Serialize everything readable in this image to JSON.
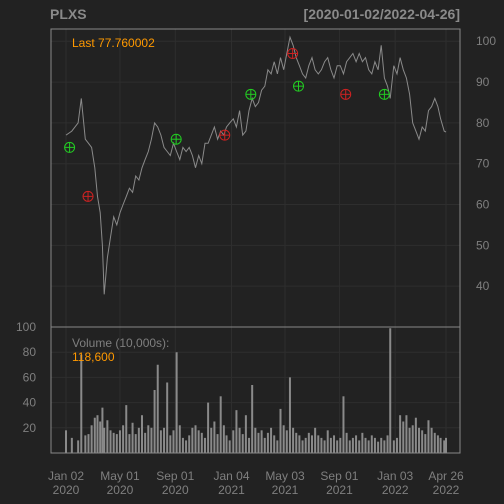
{
  "header": {
    "symbol": "PLXS",
    "range": "[2020-01-02/2022-04-26]"
  },
  "colors": {
    "background": "#222222",
    "panel_border": "#888888",
    "grid": "#2e2e2e",
    "price_line": "#8a8a8a",
    "volume_bar": "#8a8a8a",
    "text_muted": "#7f7f7f",
    "text_header": "#8a8a8a",
    "accent_orange": "#ff9900",
    "buy_marker": "#22cc22",
    "sell_marker": "#cc2222"
  },
  "chart_data": [
    {
      "type": "line",
      "name": "price",
      "last_label": "Last 77.760002",
      "ylim": [
        30,
        103
      ],
      "y_ticks": [
        "40",
        "50",
        "60",
        "70",
        "80",
        "90",
        "100"
      ],
      "x_ticks": [
        {
          "date": "2020-01-02",
          "line1": "Jan 02",
          "line2": "2020"
        },
        {
          "date": "2020-05-01",
          "line1": "May 01",
          "line2": "2020"
        },
        {
          "date": "2020-09-01",
          "line1": "Sep 01",
          "line2": "2020"
        },
        {
          "date": "2021-01-04",
          "line1": "Jan 04",
          "line2": "2021"
        },
        {
          "date": "2021-05-03",
          "line1": "May 03",
          "line2": "2021"
        },
        {
          "date": "2021-09-01",
          "line1": "Sep 01",
          "line2": "2021"
        },
        {
          "date": "2022-01-03",
          "line1": "Jan 03",
          "line2": "2022"
        },
        {
          "date": "2022-04-26",
          "line1": "Apr 26",
          "line2": "2022"
        }
      ],
      "x": [
        "2020-01-02",
        "2020-01-15",
        "2020-01-29",
        "2020-02-05",
        "2020-02-14",
        "2020-02-21",
        "2020-02-28",
        "2020-03-06",
        "2020-03-12",
        "2020-03-18",
        "2020-03-23",
        "2020-03-27",
        "2020-04-03",
        "2020-04-10",
        "2020-04-17",
        "2020-04-24",
        "2020-05-01",
        "2020-05-08",
        "2020-05-15",
        "2020-05-22",
        "2020-05-29",
        "2020-06-05",
        "2020-06-12",
        "2020-06-19",
        "2020-06-26",
        "2020-07-03",
        "2020-07-10",
        "2020-07-17",
        "2020-07-24",
        "2020-07-31",
        "2020-08-07",
        "2020-08-14",
        "2020-08-21",
        "2020-08-28",
        "2020-09-04",
        "2020-09-11",
        "2020-09-18",
        "2020-09-25",
        "2020-10-02",
        "2020-10-09",
        "2020-10-16",
        "2020-10-23",
        "2020-10-30",
        "2020-11-06",
        "2020-11-13",
        "2020-11-20",
        "2020-11-27",
        "2020-12-04",
        "2020-12-11",
        "2020-12-18",
        "2020-12-24",
        "2020-12-31",
        "2021-01-08",
        "2021-01-15",
        "2021-01-22",
        "2021-01-29",
        "2021-02-05",
        "2021-02-12",
        "2021-02-19",
        "2021-02-26",
        "2021-03-05",
        "2021-03-12",
        "2021-03-19",
        "2021-03-26",
        "2021-04-02",
        "2021-04-09",
        "2021-04-16",
        "2021-04-23",
        "2021-04-30",
        "2021-05-07",
        "2021-05-14",
        "2021-05-21",
        "2021-05-28",
        "2021-06-04",
        "2021-06-11",
        "2021-06-18",
        "2021-06-25",
        "2021-07-02",
        "2021-07-09",
        "2021-07-16",
        "2021-07-23",
        "2021-07-30",
        "2021-08-06",
        "2021-08-13",
        "2021-08-20",
        "2021-08-27",
        "2021-09-03",
        "2021-09-10",
        "2021-09-17",
        "2021-09-24",
        "2021-10-01",
        "2021-10-08",
        "2021-10-15",
        "2021-10-22",
        "2021-10-29",
        "2021-11-05",
        "2021-11-12",
        "2021-11-19",
        "2021-11-26",
        "2021-12-03",
        "2021-12-10",
        "2021-12-17",
        "2021-12-23",
        "2021-12-31",
        "2022-01-07",
        "2022-01-14",
        "2022-01-21",
        "2022-01-28",
        "2022-02-04",
        "2022-02-11",
        "2022-02-18",
        "2022-02-25",
        "2022-03-04",
        "2022-03-11",
        "2022-03-18",
        "2022-03-25",
        "2022-04-01",
        "2022-04-08",
        "2022-04-14",
        "2022-04-22",
        "2022-04-26"
      ],
      "values": [
        77,
        78,
        80,
        86,
        76,
        75,
        74,
        69,
        62,
        58,
        50,
        38,
        47,
        52,
        57,
        55,
        58,
        60,
        62,
        64,
        63,
        67,
        66,
        69,
        71,
        73,
        76,
        80,
        79,
        77,
        74,
        73,
        72,
        75,
        73,
        71,
        74,
        73,
        74,
        72,
        69,
        72,
        70,
        75,
        75,
        77,
        79,
        76,
        78,
        77,
        79,
        80,
        81,
        79,
        83,
        77,
        78,
        83,
        86,
        84,
        85,
        88,
        89,
        93,
        92,
        95,
        92,
        96,
        93,
        97,
        101,
        99,
        96,
        94,
        92,
        91,
        94,
        96,
        93,
        92,
        93,
        95,
        96,
        93,
        91,
        94,
        94,
        92,
        95,
        96,
        97,
        95,
        97,
        95,
        96,
        93,
        92,
        95,
        93,
        99,
        91,
        89,
        86,
        94,
        92,
        96,
        93,
        91,
        87,
        80,
        78,
        76,
        79,
        78,
        83,
        84,
        86,
        84,
        81,
        78,
        77.76
      ],
      "markers": [
        {
          "date": "2020-01-10",
          "value": 74,
          "kind": "buy"
        },
        {
          "date": "2020-02-20",
          "value": 62,
          "kind": "sell"
        },
        {
          "date": "2020-09-03",
          "value": 76,
          "kind": "buy"
        },
        {
          "date": "2020-12-20",
          "value": 77,
          "kind": "sell"
        },
        {
          "date": "2021-02-16",
          "value": 87,
          "kind": "buy"
        },
        {
          "date": "2021-05-20",
          "value": 97,
          "kind": "sell"
        },
        {
          "date": "2021-06-02",
          "value": 89,
          "kind": "buy"
        },
        {
          "date": "2021-09-15",
          "value": 87,
          "kind": "sell"
        },
        {
          "date": "2021-12-10",
          "value": 87,
          "kind": "buy"
        }
      ]
    },
    {
      "type": "bar",
      "name": "volume",
      "title": "Volume (10,000s):",
      "last_value": "118,600",
      "ylim": [
        0,
        100
      ],
      "y_ticks": [
        "20",
        "40",
        "60",
        "80",
        "100"
      ],
      "x": [
        "2020-01-02",
        "2020-01-15",
        "2020-01-29",
        "2020-02-05",
        "2020-02-14",
        "2020-02-21",
        "2020-02-28",
        "2020-03-06",
        "2020-03-12",
        "2020-03-18",
        "2020-03-23",
        "2020-03-27",
        "2020-04-03",
        "2020-04-10",
        "2020-04-17",
        "2020-04-24",
        "2020-05-01",
        "2020-05-08",
        "2020-05-15",
        "2020-05-22",
        "2020-05-29",
        "2020-06-05",
        "2020-06-12",
        "2020-06-19",
        "2020-06-26",
        "2020-07-03",
        "2020-07-10",
        "2020-07-17",
        "2020-07-24",
        "2020-07-31",
        "2020-08-07",
        "2020-08-14",
        "2020-08-21",
        "2020-08-28",
        "2020-09-04",
        "2020-09-11",
        "2020-09-18",
        "2020-09-25",
        "2020-10-02",
        "2020-10-09",
        "2020-10-16",
        "2020-10-23",
        "2020-10-30",
        "2020-11-06",
        "2020-11-13",
        "2020-11-20",
        "2020-11-27",
        "2020-12-04",
        "2020-12-11",
        "2020-12-18",
        "2020-12-24",
        "2020-12-31",
        "2021-01-08",
        "2021-01-15",
        "2021-01-22",
        "2021-01-29",
        "2021-02-05",
        "2021-02-12",
        "2021-02-19",
        "2021-02-26",
        "2021-03-05",
        "2021-03-12",
        "2021-03-19",
        "2021-03-26",
        "2021-04-02",
        "2021-04-09",
        "2021-04-16",
        "2021-04-23",
        "2021-04-30",
        "2021-05-07",
        "2021-05-14",
        "2021-05-21",
        "2021-05-28",
        "2021-06-04",
        "2021-06-11",
        "2021-06-18",
        "2021-06-25",
        "2021-07-02",
        "2021-07-09",
        "2021-07-16",
        "2021-07-23",
        "2021-07-30",
        "2021-08-06",
        "2021-08-13",
        "2021-08-20",
        "2021-08-27",
        "2021-09-03",
        "2021-09-10",
        "2021-09-17",
        "2021-09-24",
        "2021-10-01",
        "2021-10-08",
        "2021-10-15",
        "2021-10-22",
        "2021-10-29",
        "2021-11-05",
        "2021-11-12",
        "2021-11-19",
        "2021-11-26",
        "2021-12-03",
        "2021-12-10",
        "2021-12-17",
        "2021-12-23",
        "2021-12-31",
        "2022-01-07",
        "2022-01-14",
        "2022-01-21",
        "2022-01-28",
        "2022-02-04",
        "2022-02-11",
        "2022-02-18",
        "2022-02-25",
        "2022-03-04",
        "2022-03-11",
        "2022-03-18",
        "2022-03-25",
        "2022-04-01",
        "2022-04-08",
        "2022-04-14",
        "2022-04-22",
        "2022-04-26"
      ],
      "values": [
        18,
        12,
        10,
        78,
        14,
        15,
        22,
        28,
        30,
        25,
        36,
        20,
        26,
        18,
        16,
        15,
        18,
        22,
        38,
        15,
        24,
        15,
        20,
        30,
        16,
        22,
        20,
        50,
        70,
        18,
        20,
        56,
        14,
        18,
        80,
        22,
        12,
        10,
        14,
        20,
        22,
        18,
        16,
        12,
        40,
        20,
        25,
        15,
        45,
        22,
        14,
        10,
        18,
        34,
        20,
        15,
        30,
        12,
        54,
        20,
        16,
        18,
        12,
        16,
        20,
        14,
        10,
        35,
        22,
        18,
        60,
        20,
        16,
        14,
        10,
        12,
        16,
        14,
        20,
        14,
        12,
        10,
        18,
        12,
        14,
        10,
        12,
        45,
        16,
        10,
        12,
        14,
        10,
        16,
        12,
        10,
        14,
        12,
        9,
        12,
        10,
        14,
        99,
        10,
        12,
        30,
        25,
        30,
        20,
        22,
        28,
        20,
        18,
        15,
        26,
        20,
        16,
        14,
        12,
        10,
        12
      ]
    }
  ]
}
